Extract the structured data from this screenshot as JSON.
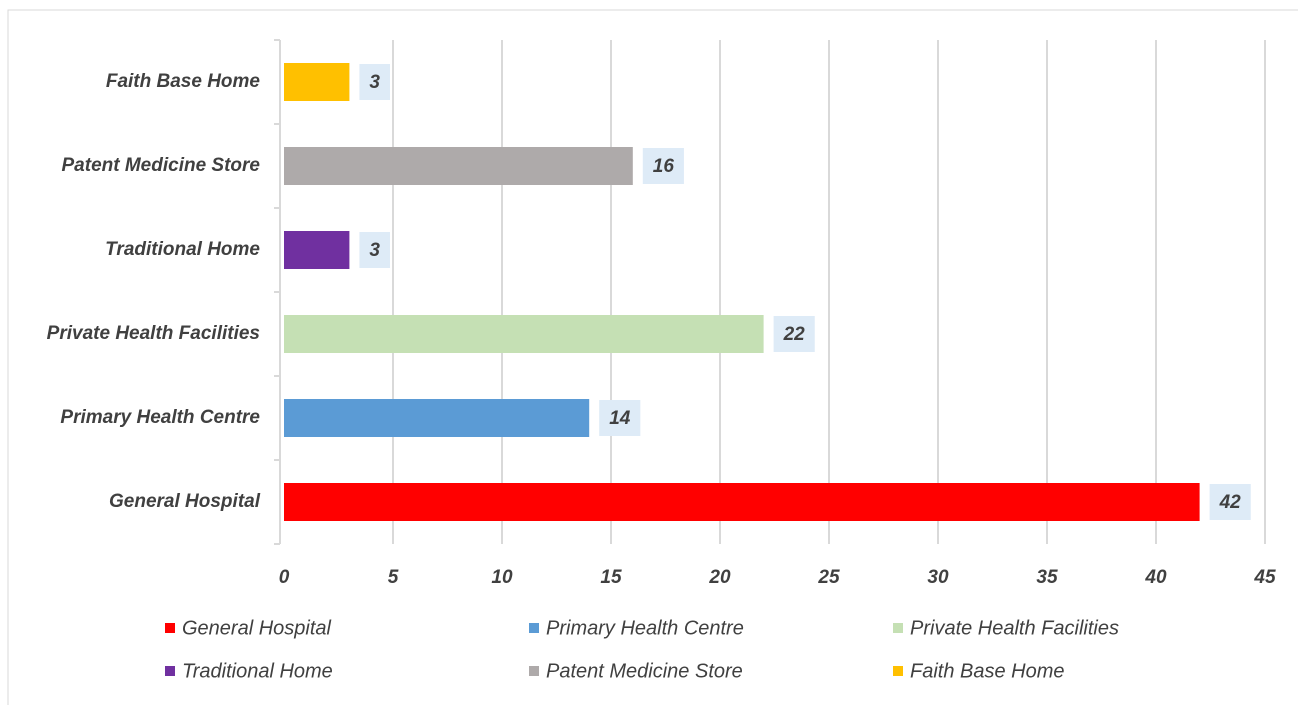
{
  "chart_data": {
    "type": "bar",
    "orientation": "horizontal",
    "categories": [
      "General Hospital",
      "Primary Health Centre",
      "Private Health Facilities",
      "Traditional Home",
      "Patent Medicine Store",
      "Faith Base Home"
    ],
    "values": [
      42,
      14,
      22,
      3,
      16,
      3
    ],
    "colors": [
      "#ff0000",
      "#5b9bd5",
      "#c5e0b4",
      "#7030a0",
      "#aeaaaa",
      "#ffc000"
    ],
    "xlim": [
      0,
      45
    ],
    "xticks": [
      0,
      5,
      10,
      15,
      20,
      25,
      30,
      35,
      40,
      45
    ],
    "grid": true,
    "legend": "bottom"
  }
}
